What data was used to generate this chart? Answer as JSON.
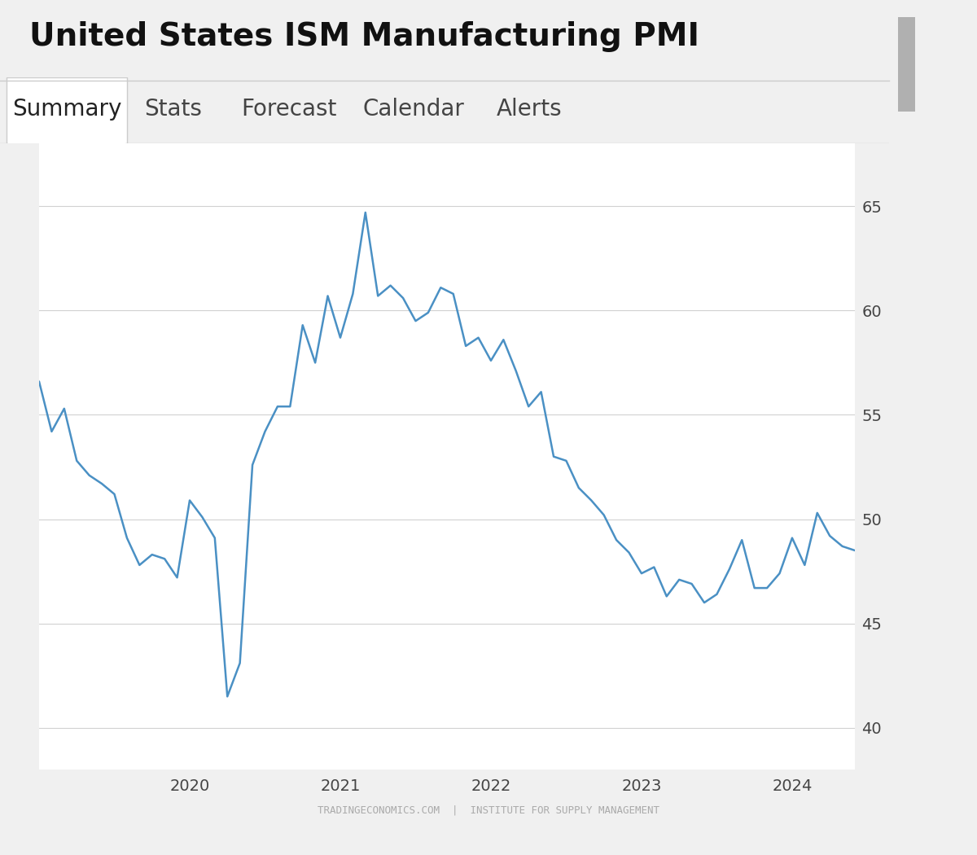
{
  "title": "United States ISM Manufacturing PMI",
  "nav_items": [
    "Summary",
    "Stats",
    "Forecast",
    "Calendar",
    "Alerts"
  ],
  "nav_selected": "Summary",
  "watermark": "TRADINGECONOMICS.COM  |  INSTITUTE FOR SUPPLY MANAGEMENT",
  "line_color": "#4a90c4",
  "grid_color": "#cccccc",
  "bg_color": "#ffffff",
  "outer_bg": "#f0f0f0",
  "ylim": [
    38,
    68
  ],
  "yticks": [
    40,
    45,
    50,
    55,
    60,
    65
  ],
  "values": [
    56.6,
    54.2,
    55.3,
    52.8,
    52.1,
    51.7,
    51.2,
    49.1,
    47.8,
    48.3,
    48.1,
    47.2,
    50.9,
    50.1,
    49.1,
    41.5,
    43.1,
    52.6,
    54.2,
    55.4,
    55.4,
    59.3,
    57.5,
    60.7,
    58.7,
    60.8,
    64.7,
    60.7,
    61.2,
    60.6,
    59.5,
    59.9,
    61.1,
    60.8,
    58.3,
    58.7,
    57.6,
    58.6,
    57.1,
    55.4,
    56.1,
    53.0,
    52.8,
    51.5,
    50.9,
    50.2,
    49.0,
    48.4,
    47.4,
    47.7,
    46.3,
    47.1,
    46.9,
    46.0,
    46.4,
    47.6,
    49.0,
    46.7,
    46.7,
    47.4,
    49.1,
    47.8,
    50.3,
    49.2,
    48.7,
    48.5
  ],
  "xtick_positions": [
    12,
    24,
    36,
    48,
    60
  ],
  "xtick_labels": [
    "2020",
    "2021",
    "2022",
    "2023",
    "2024"
  ],
  "title_fontsize": 28,
  "nav_fontsize": 20,
  "axis_fontsize": 14,
  "watermark_fontsize": 9
}
